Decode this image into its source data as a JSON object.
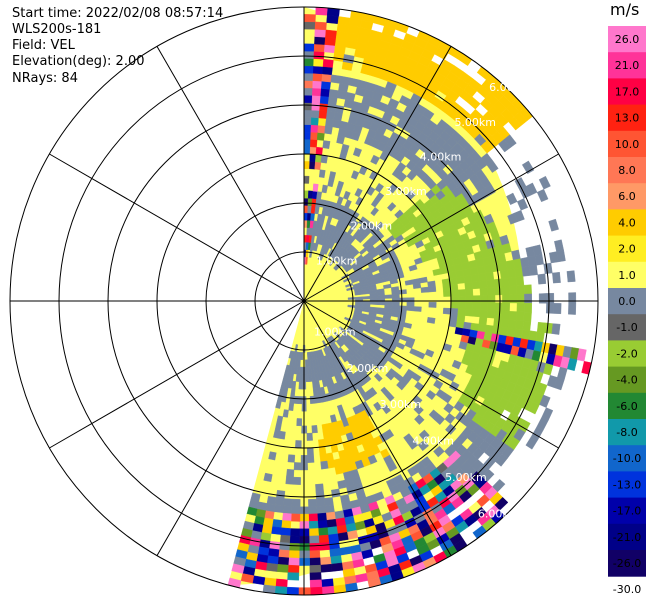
{
  "header": {
    "start_time": "Start time: 2022/02/08 08:57:14",
    "instrument": "WLS200s-181",
    "field": "Field: VEL",
    "elevation": "Elevation(deg): 2.00",
    "nrays": "NRays: 84"
  },
  "chart_data": {
    "type": "ppi",
    "title": "",
    "field": "VEL",
    "units": "m/s",
    "elevation_deg": 2.0,
    "n_rays": 84,
    "azimuth_coverage_deg": [
      0,
      195
    ],
    "max_range_km": 6.0,
    "range_rings_km": [
      1.0,
      2.0,
      3.0,
      4.0,
      5.0,
      6.0
    ],
    "range_ring_labels": [
      "1.00km",
      "2.00km",
      "3.00km",
      "4.00km",
      "5.00km",
      "6.00km"
    ],
    "spoke_step_deg": 30,
    "colorbar": {
      "label": "m/s",
      "ticks": [
        "26.0",
        "21.0",
        "17.0",
        "13.0",
        "10.0",
        "8.0",
        "6.0",
        "4.0",
        "2.0",
        "1.0",
        "0.0",
        "-1.0",
        "-2.0",
        "-4.0",
        "-6.0",
        "-8.0",
        "-10.0",
        "-13.0",
        "-17.0",
        "-21.0",
        "-26.0",
        "-30.0"
      ],
      "colors": [
        "#ff77cc",
        "#ff3399",
        "#ff0044",
        "#ff2211",
        "#ff5533",
        "#ff7755",
        "#ff9966",
        "#ffcc00",
        "#ffee22",
        "#ffff66",
        "#7788a0",
        "#666666",
        "#99cc33",
        "#669922",
        "#228833",
        "#1199aa",
        "#1166cc",
        "#0033dd",
        "#0000aa",
        "#000088",
        "#110066"
      ]
    },
    "regions": [
      {
        "label": "near-zero background",
        "value_ms": 0.0,
        "range_km": [
          0,
          6.0
        ],
        "azimuth_deg": [
          0,
          195
        ]
      },
      {
        "label": "band",
        "value_ms": -1.0,
        "range_km": [
          1.0,
          5.6
        ],
        "azimuth_deg": [
          0,
          195
        ]
      },
      {
        "label": "green lobe",
        "value_ms": -2.0,
        "range_km": [
          1.7,
          5.3
        ],
        "azimuth_deg": [
          48,
          125
        ]
      },
      {
        "label": "yellow outer band",
        "value_ms": 2.0,
        "range_km": [
          4.8,
          6.0
        ],
        "azimuth_deg": [
          8,
          52
        ]
      },
      {
        "label": "yellow south-east",
        "value_ms": 2.0,
        "range_km": [
          2.5,
          3.6
        ],
        "azimuth_deg": [
          150,
          175
        ]
      },
      {
        "label": "noise near west edge",
        "value_ms": null,
        "range_km": [
          0.8,
          6.0
        ],
        "azimuth_deg": [
          0,
          6
        ]
      },
      {
        "label": "noise far south",
        "value_ms": null,
        "range_km": [
          4.3,
          6.0
        ],
        "azimuth_deg": [
          135,
          195
        ]
      },
      {
        "label": "noise streak",
        "value_ms": null,
        "range_km": [
          3.2,
          6.0
        ],
        "azimuth_deg": [
          100,
          104
        ]
      }
    ]
  }
}
